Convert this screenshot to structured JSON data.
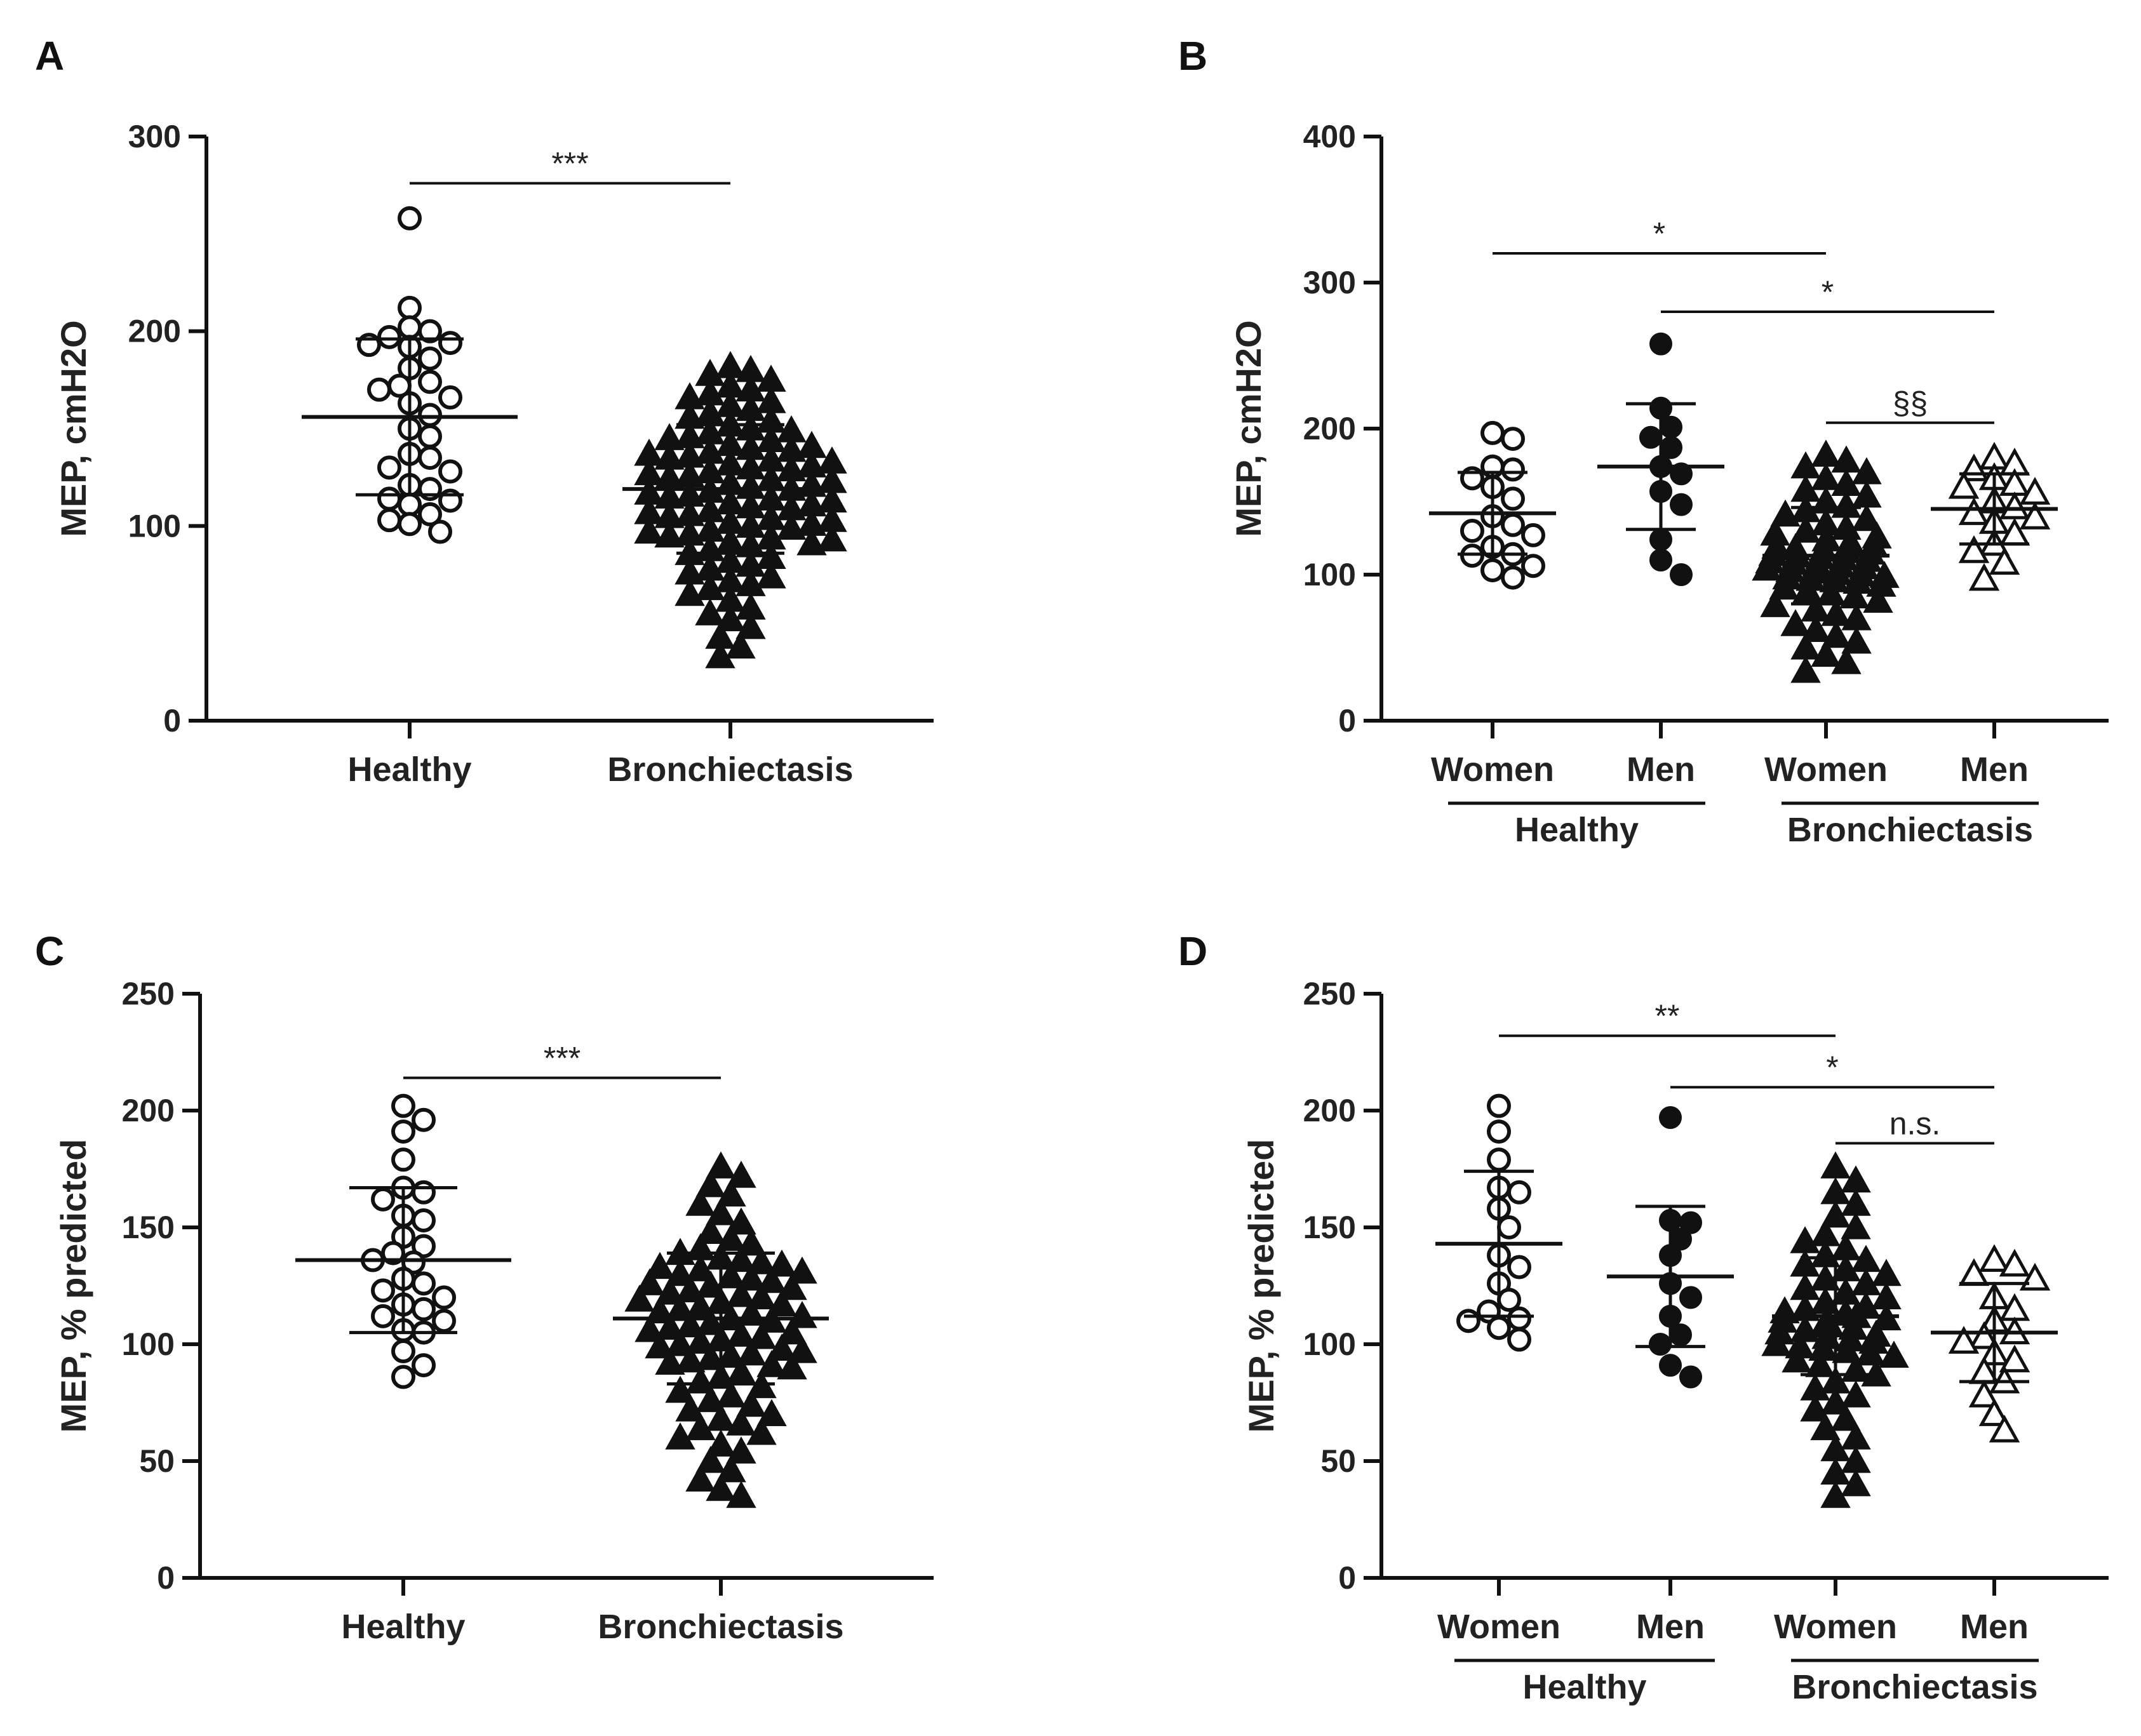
{
  "figure": {
    "chart_data": [
      {
        "type": "scatter",
        "panel": "A",
        "ylabel": "MEP, cmH2O",
        "ylim": [
          0,
          300
        ],
        "yticks": [
          0,
          100,
          200,
          300
        ],
        "groups": [
          {
            "label": "Healthy",
            "marker": "circle-open",
            "mean": 156,
            "sd": 40,
            "values": [
              258,
              212,
              202,
              200,
              197,
              194,
              193,
              192,
              186,
              181,
              174,
              172,
              170,
              166,
              163,
              157,
              150,
              146,
              137,
              135,
              130,
              128,
              121,
              119,
              114,
              113,
              111,
              106,
              103,
              101,
              97
            ]
          },
          {
            "label": "Bronchiectasis",
            "marker": "triangle-filled",
            "mean": 119,
            "sd": 33,
            "values": [
              182,
              180,
              178,
              175,
              172,
              170,
              168,
              166,
              164,
              162,
              160,
              158,
              156,
              154,
              152,
              150,
              149,
              148,
              146,
              145,
              144,
              142,
              141,
              140,
              139,
              138,
              137,
              136,
              135,
              134,
              133,
              132,
              131,
              130,
              129,
              128,
              127,
              126,
              125,
              124,
              123,
              122,
              121,
              120,
              119,
              118,
              117,
              116,
              115,
              114,
              113,
              112,
              111,
              110,
              109,
              108,
              107,
              106,
              105,
              104,
              103,
              102,
              101,
              100,
              99,
              98,
              97,
              96,
              95,
              94,
              93,
              92,
              91,
              90,
              88,
              86,
              84,
              82,
              80,
              78,
              76,
              74,
              72,
              70,
              68,
              65,
              62,
              58,
              55,
              52,
              48,
              43,
              38,
              33
            ]
          }
        ],
        "comparisons": [
          {
            "from": 0,
            "to": 1,
            "y": 276,
            "label": "***"
          }
        ]
      },
      {
        "type": "scatter",
        "panel": "B",
        "ylabel": "MEP, cmH2O",
        "ylim": [
          0,
          400
        ],
        "yticks": [
          0,
          100,
          200,
          300,
          400
        ],
        "groups": [
          {
            "label": "Women",
            "marker": "circle-open",
            "mean": 142,
            "sd": 28,
            "values": [
              197,
              193,
              174,
              172,
              166,
              160,
              152,
              140,
              134,
              130,
              127,
              119,
              114,
              113,
              106,
              103,
              98
            ]
          },
          {
            "label": "Men",
            "marker": "circle-filled",
            "mean": 174,
            "sd": 43,
            "values": [
              258,
              214,
              201,
              194,
              187,
              174,
              169,
              157,
              148,
              124,
              110,
              100
            ]
          },
          {
            "label": "Women",
            "marker": "triangle-filled",
            "mean": 113,
            "sd": 33,
            "values": [
              182,
              178,
              174,
              170,
              166,
              162,
              158,
              154,
              150,
              147,
              144,
              141,
              138,
              135,
              132,
              130,
              128,
              126,
              124,
              122,
              120,
              119,
              118,
              117,
              116,
              115,
              114,
              113,
              112,
              111,
              110,
              109,
              108,
              107,
              106,
              105,
              104,
              103,
              102,
              101,
              100,
              99,
              98,
              97,
              96,
              95,
              93,
              91,
              89,
              87,
              85,
              82,
              79,
              76,
              73,
              70,
              66,
              62,
              58,
              54,
              50,
              45,
              40,
              34
            ]
          },
          {
            "label": "Men",
            "marker": "triangle-open",
            "mean": 145,
            "sd": 24,
            "values": [
              180,
              176,
              172,
              166,
              162,
              160,
              156,
              150,
              146,
              142,
              139,
              136,
              128,
              121,
              116,
              108,
              97
            ]
          }
        ],
        "comparisons": [
          {
            "from": 0,
            "to": 2,
            "y": 320,
            "label": "*"
          },
          {
            "from": 1,
            "to": 3,
            "y": 280,
            "label": "*"
          },
          {
            "from": 2,
            "to": 3,
            "y": 204,
            "label": "§§"
          }
        ],
        "group_brackets": [
          {
            "from": 0,
            "to": 1,
            "label": "Healthy"
          },
          {
            "from": 2,
            "to": 3,
            "label": "Bronchiectasis"
          }
        ]
      },
      {
        "type": "scatter",
        "panel": "C",
        "ylabel": "MEP, % predicted",
        "ylim": [
          0,
          250
        ],
        "yticks": [
          0,
          50,
          100,
          150,
          200,
          250
        ],
        "groups": [
          {
            "label": "Healthy",
            "marker": "circle-open",
            "mean": 136,
            "sd": 31,
            "values": [
              202,
              196,
              191,
              179,
              167,
              165,
              162,
              155,
              153,
              146,
              142,
              139,
              136,
              135,
              128,
              126,
              123,
              120,
              117,
              115,
              112,
              110,
              106,
              105,
              97,
              91,
              86
            ]
          },
          {
            "label": "Bronchiectasis",
            "marker": "triangle-filled",
            "mean": 111,
            "sd": 28,
            "values": [
              176,
              172,
              168,
              164,
              160,
              156,
              152,
              148,
              145,
              143,
              141,
              139,
              137,
              136,
              135,
              134,
              133,
              132,
              131,
              130,
              129,
              128,
              127,
              126,
              125,
              124,
              123,
              122,
              121,
              120,
              119,
              118,
              117,
              116,
              115,
              114,
              113,
              112,
              111,
              110,
              109,
              108,
              107,
              106,
              105,
              104,
              103,
              102,
              101,
              100,
              99,
              98,
              97,
              96,
              95,
              94,
              93,
              92,
              91,
              90,
              88,
              86,
              84,
              82,
              80,
              78,
              76,
              74,
              72,
              70,
              68,
              66,
              64,
              62,
              60,
              57,
              54,
              50,
              46,
              42,
              38,
              35
            ]
          }
        ],
        "comparisons": [
          {
            "from": 0,
            "to": 1,
            "y": 214,
            "label": "***"
          }
        ]
      },
      {
        "type": "scatter",
        "panel": "D",
        "ylabel": "MEP, % predicted",
        "ylim": [
          0,
          250
        ],
        "yticks": [
          0,
          50,
          100,
          150,
          200,
          250
        ],
        "groups": [
          {
            "label": "Women",
            "marker": "circle-open",
            "mean": 143,
            "sd": 31,
            "values": [
              202,
              191,
              179,
              167,
              165,
              158,
              150,
              138,
              133,
              126,
              119,
              114,
              111,
              110,
              107,
              102
            ]
          },
          {
            "label": "Men",
            "marker": "circle-filled",
            "mean": 129,
            "sd": 30,
            "values": [
              197,
              153,
              152,
              145,
              138,
              126,
              120,
              112,
              104,
              100,
              91,
              86
            ]
          },
          {
            "label": "Women",
            "marker": "triangle-filled",
            "mean": 112,
            "sd": 25,
            "values": [
              176,
              170,
              165,
              160,
              155,
              150,
              147,
              144,
              141,
              138,
              136,
              134,
              132,
              130,
              128,
              126,
              124,
              122,
              120,
              118,
              116,
              115,
              114,
              113,
              112,
              111,
              110,
              109,
              108,
              107,
              106,
              105,
              104,
              103,
              102,
              101,
              100,
              99,
              98,
              97,
              96,
              95,
              93,
              91,
              89,
              87,
              84,
              81,
              78,
              75,
              72,
              68,
              64,
              60,
              55,
              50,
              45,
              40,
              35
            ]
          },
          {
            "label": "Men",
            "marker": "triangle-open",
            "mean": 105,
            "sd": 21,
            "values": [
              136,
              134,
              130,
              128,
              120,
              115,
              110,
              105,
              103,
              101,
              96,
              93,
              88,
              84,
              78,
              70,
              63
            ]
          }
        ],
        "comparisons": [
          {
            "from": 0,
            "to": 2,
            "y": 232,
            "label": "**"
          },
          {
            "from": 1,
            "to": 3,
            "y": 210,
            "label": "*"
          },
          {
            "from": 2,
            "to": 3,
            "y": 186,
            "label": "n.s."
          }
        ],
        "group_brackets": [
          {
            "from": 0,
            "to": 1,
            "label": "Healthy"
          },
          {
            "from": 2,
            "to": 3,
            "label": "Bronchiectasis"
          }
        ]
      }
    ]
  }
}
